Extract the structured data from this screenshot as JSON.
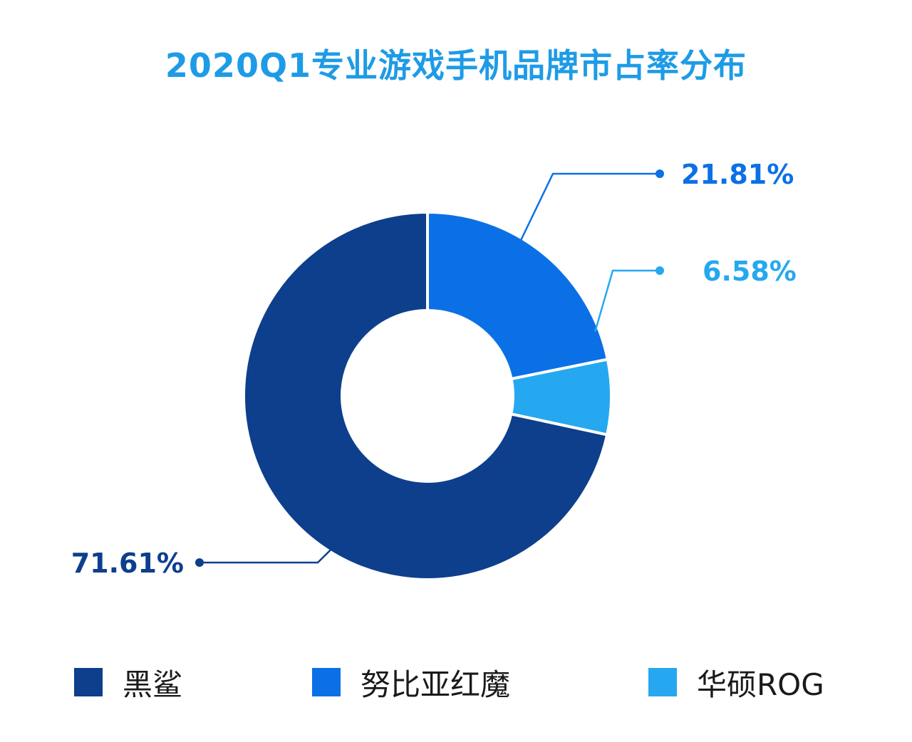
{
  "chart_data": {
    "type": "pie",
    "donut": true,
    "title": "2020Q1专业游戏手机品牌市占率分布",
    "categories": [
      "黑鲨",
      "努比亚红魔",
      "华硕ROG"
    ],
    "values": [
      71.61,
      21.81,
      6.58
    ],
    "value_labels": [
      "71.61%",
      "21.81%",
      "6.58%"
    ],
    "colors": [
      "#0d3f8c",
      "#0b70e6",
      "#25a8ef"
    ],
    "label_colors": [
      "#0d3f8c",
      "#0b70e6",
      "#25a8ef"
    ],
    "legend_position": "bottom"
  }
}
